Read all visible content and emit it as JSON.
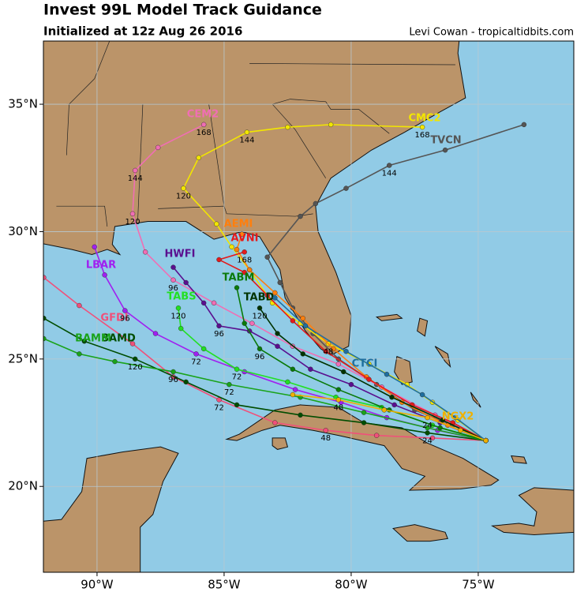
{
  "header": {
    "title": "Invest 99L Model Track Guidance",
    "subtitle": "Initialized at 12z Aug 26 2016",
    "credit": "Levi Cowan - tropicaltidbits.com"
  },
  "map": {
    "lon_range": [
      -92.11,
      -71.24
    ],
    "lat_range": [
      16.63,
      37.48
    ],
    "grid": true,
    "lat_ticks": [
      {
        "value": 20,
        "label": "20°N"
      },
      {
        "value": 25,
        "label": "25°N"
      },
      {
        "value": 30,
        "label": "30°N"
      },
      {
        "value": 35,
        "label": "35°N"
      }
    ],
    "lon_ticks": [
      {
        "value": -90,
        "label": "90°W"
      },
      {
        "value": -85,
        "label": "85°W"
      },
      {
        "value": -80,
        "label": "80°W"
      },
      {
        "value": -75,
        "label": "75°W"
      }
    ]
  },
  "tracks": [
    {
      "name": "TVCN",
      "color": "#555555",
      "points": [
        {
          "lon": -74.7,
          "lat": 21.8
        },
        {
          "lon": -76.0,
          "lat": 22.4
        },
        {
          "lon": -77.5,
          "lat": 23.0
        },
        {
          "lon": -79.0,
          "lat": 24.0
        },
        {
          "lon": -80.5,
          "lat": 25.0
        },
        {
          "lon": -81.5,
          "lat": 26.0
        },
        {
          "lon": -82.3,
          "lat": 27.0
        },
        {
          "lon": -82.8,
          "lat": 28.0
        },
        {
          "lon": -83.3,
          "lat": 29.0
        },
        {
          "lon": -82.0,
          "lat": 30.6
        },
        {
          "lon": -81.4,
          "lat": 31.1
        },
        {
          "lon": -80.2,
          "lat": 31.7
        },
        {
          "lon": -78.5,
          "lat": 32.6,
          "hour": 144
        },
        {
          "lon": -76.3,
          "lat": 33.2
        },
        {
          "lon": -73.2,
          "lat": 34.2
        }
      ]
    },
    {
      "name": "CMC2",
      "color": "#f2e600",
      "points": [
        {
          "lon": -74.7,
          "lat": 21.8
        },
        {
          "lon": -75.8,
          "lat": 22.6
        },
        {
          "lon": -76.8,
          "lat": 23.3
        },
        {
          "lon": -77.8,
          "lat": 24.0
        },
        {
          "lon": -79.3,
          "lat": 24.8
        },
        {
          "lon": -80.9,
          "lat": 25.6,
          "hour": 48
        },
        {
          "lon": -82.0,
          "lat": 26.4
        },
        {
          "lon": -83.1,
          "lat": 27.2
        },
        {
          "lon": -84.0,
          "lat": 28.5
        },
        {
          "lon": -84.7,
          "lat": 29.4
        },
        {
          "lon": -85.3,
          "lat": 30.3
        },
        {
          "lon": -86.6,
          "lat": 31.7,
          "hour": 120
        },
        {
          "lon": -86.0,
          "lat": 32.9
        },
        {
          "lon": -84.1,
          "lat": 33.9,
          "hour": 144
        },
        {
          "lon": -82.5,
          "lat": 34.1
        },
        {
          "lon": -80.8,
          "lat": 34.2
        },
        {
          "lon": -77.2,
          "lat": 34.1,
          "hour": 168
        }
      ]
    },
    {
      "name": "CEM2",
      "color": "#f06eb4",
      "points": [
        {
          "lon": -74.7,
          "lat": 21.8
        },
        {
          "lon": -76.7,
          "lat": 22.8
        },
        {
          "lon": -78.8,
          "lat": 23.9
        },
        {
          "lon": -80.5,
          "lat": 24.8
        },
        {
          "lon": -82.3,
          "lat": 25.5
        },
        {
          "lon": -83.9,
          "lat": 26.4
        },
        {
          "lon": -85.4,
          "lat": 27.2
        },
        {
          "lon": -87.0,
          "lat": 28.1,
          "hour": 96
        },
        {
          "lon": -88.1,
          "lat": 29.2
        },
        {
          "lon": -88.6,
          "lat": 30.7,
          "hour": 120
        },
        {
          "lon": -88.5,
          "lat": 32.4,
          "hour": 144
        },
        {
          "lon": -87.6,
          "lat": 33.3
        },
        {
          "lon": -85.8,
          "lat": 34.2,
          "hour": 168
        }
      ]
    },
    {
      "name": "AEMI",
      "color": "#ff7f0e",
      "points": [
        {
          "lon": -74.7,
          "lat": 21.8
        },
        {
          "lon": -76.2,
          "lat": 22.4
        },
        {
          "lon": -78.0,
          "lat": 23.3
        },
        {
          "lon": -79.4,
          "lat": 24.3
        },
        {
          "lon": -80.7,
          "lat": 25.4
        },
        {
          "lon": -81.9,
          "lat": 26.6
        },
        {
          "lon": -83.0,
          "lat": 27.6
        },
        {
          "lon": -84.0,
          "lat": 28.5
        },
        {
          "lon": -84.5,
          "lat": 29.3
        },
        {
          "lon": -84.3,
          "lat": 29.9
        }
      ]
    },
    {
      "name": "AVNI",
      "color": "#e41a1c",
      "points": [
        {
          "lon": -74.7,
          "lat": 21.8
        },
        {
          "lon": -76.0,
          "lat": 22.5
        },
        {
          "lon": -77.6,
          "lat": 23.2
        },
        {
          "lon": -79.3,
          "lat": 24.2
        },
        {
          "lon": -81.0,
          "lat": 25.3
        },
        {
          "lon": -82.3,
          "lat": 26.5
        },
        {
          "lon": -83.3,
          "lat": 27.5
        },
        {
          "lon": -84.2,
          "lat": 28.4
        },
        {
          "lon": -85.2,
          "lat": 28.9
        },
        {
          "lon": -84.2,
          "lat": 29.2,
          "hour": 168
        }
      ]
    },
    {
      "name": "HWFI",
      "color": "#5a0f8f",
      "points": [
        {
          "lon": -74.7,
          "lat": 21.8
        },
        {
          "lon": -76.5,
          "lat": 22.5
        },
        {
          "lon": -78.3,
          "lat": 23.2
        },
        {
          "lon": -80.0,
          "lat": 24.0
        },
        {
          "lon": -81.6,
          "lat": 24.6
        },
        {
          "lon": -82.9,
          "lat": 25.5
        },
        {
          "lon": -84.0,
          "lat": 26.1
        },
        {
          "lon": -85.2,
          "lat": 26.3,
          "hour": 96
        },
        {
          "lon": -85.8,
          "lat": 27.2
        },
        {
          "lon": -86.5,
          "lat": 28.0
        },
        {
          "lon": -87.0,
          "lat": 28.6
        }
      ]
    },
    {
      "name": "LBAR",
      "color": "#a020f0",
      "points": [
        {
          "lon": -74.7,
          "lat": 21.8
        },
        {
          "lon": -76.6,
          "lat": 22.2
        },
        {
          "lon": -78.6,
          "lat": 22.7
        },
        {
          "lon": -80.4,
          "lat": 23.3
        },
        {
          "lon": -82.2,
          "lat": 23.8
        },
        {
          "lon": -84.2,
          "lat": 24.5
        },
        {
          "lon": -86.1,
          "lat": 25.2,
          "hour": 72
        },
        {
          "lon": -87.7,
          "lat": 26.0
        },
        {
          "lon": -88.9,
          "lat": 26.9,
          "hour": 96
        },
        {
          "lon": -89.7,
          "lat": 28.3
        },
        {
          "lon": -90.1,
          "lat": 29.4
        }
      ]
    },
    {
      "name": "GFDI",
      "color": "#f0507a",
      "points": [
        {
          "lon": -74.7,
          "lat": 21.8
        },
        {
          "lon": -76.8,
          "lat": 21.9
        },
        {
          "lon": -79.0,
          "lat": 22.0
        },
        {
          "lon": -81.0,
          "lat": 22.2,
          "hour": 48
        },
        {
          "lon": -83.0,
          "lat": 22.5
        },
        {
          "lon": -85.2,
          "lat": 23.4,
          "hour": 72
        },
        {
          "lon": -87.0,
          "lat": 24.3
        },
        {
          "lon": -88.6,
          "lat": 25.6
        },
        {
          "lon": -90.7,
          "lat": 27.1
        },
        {
          "lon": -92.1,
          "lat": 28.2
        }
      ]
    },
    {
      "name": "BAMD",
      "color": "#004d00",
      "points": [
        {
          "lon": -74.7,
          "lat": 21.8
        },
        {
          "lon": -77.0,
          "lat": 22.1,
          "hour": 24
        },
        {
          "lon": -79.5,
          "lat": 22.5
        },
        {
          "lon": -82.0,
          "lat": 22.8
        },
        {
          "lon": -84.5,
          "lat": 23.2
        },
        {
          "lon": -86.5,
          "lat": 24.1
        },
        {
          "lon": -88.5,
          "lat": 25.0,
          "hour": 120
        },
        {
          "lon": -90.5,
          "lat": 25.7
        },
        {
          "lon": -92.1,
          "lat": 26.6
        }
      ]
    },
    {
      "name": "BAMM",
      "color": "#1aa31a",
      "points": [
        {
          "lon": -74.7,
          "lat": 21.8
        },
        {
          "lon": -77.0,
          "lat": 22.3
        },
        {
          "lon": -79.5,
          "lat": 22.9
        },
        {
          "lon": -82.0,
          "lat": 23.5
        },
        {
          "lon": -84.8,
          "lat": 24.0,
          "hour": 72
        },
        {
          "lon": -87.0,
          "lat": 24.5,
          "hour": 96
        },
        {
          "lon": -89.3,
          "lat": 24.9
        },
        {
          "lon": -90.7,
          "lat": 25.2
        },
        {
          "lon": -92.1,
          "lat": 25.8
        }
      ]
    },
    {
      "name": "TABS",
      "color": "#22e022",
      "points": [
        {
          "lon": -74.7,
          "lat": 21.8
        },
        {
          "lon": -76.8,
          "lat": 22.4
        },
        {
          "lon": -78.8,
          "lat": 23.1
        },
        {
          "lon": -80.6,
          "lat": 23.5
        },
        {
          "lon": -82.5,
          "lat": 24.1
        },
        {
          "lon": -84.5,
          "lat": 24.6,
          "hour": 72
        },
        {
          "lon": -85.8,
          "lat": 25.4
        },
        {
          "lon": -86.7,
          "lat": 26.2
        },
        {
          "lon": -86.8,
          "lat": 27.0,
          "hour": 120
        }
      ]
    },
    {
      "name": "TABM",
      "color": "#0a7a0a",
      "points": [
        {
          "lon": -74.7,
          "lat": 21.8
        },
        {
          "lon": -76.5,
          "lat": 22.3
        },
        {
          "lon": -78.5,
          "lat": 23.0
        },
        {
          "lon": -80.5,
          "lat": 23.8
        },
        {
          "lon": -82.3,
          "lat": 24.6
        },
        {
          "lon": -83.6,
          "lat": 25.4,
          "hour": 96
        },
        {
          "lon": -84.2,
          "lat": 26.4
        },
        {
          "lon": -84.5,
          "lat": 27.8
        }
      ]
    },
    {
      "name": "TABD",
      "color": "#003300",
      "points": [
        {
          "lon": -74.7,
          "lat": 21.8
        },
        {
          "lon": -76.4,
          "lat": 22.6
        },
        {
          "lon": -78.4,
          "lat": 23.5
        },
        {
          "lon": -80.3,
          "lat": 24.5
        },
        {
          "lon": -81.9,
          "lat": 25.2
        },
        {
          "lon": -82.9,
          "lat": 26.0
        },
        {
          "lon": -83.6,
          "lat": 27.0,
          "hour": 120
        }
      ]
    },
    {
      "name": "CTCI",
      "color": "#1f6f9f",
      "points": [
        {
          "lon": -74.7,
          "lat": 21.8
        },
        {
          "lon": -75.9,
          "lat": 22.7
        },
        {
          "lon": -77.2,
          "lat": 23.6
        },
        {
          "lon": -78.6,
          "lat": 24.4
        },
        {
          "lon": -80.2,
          "lat": 25.3
        },
        {
          "lon": -81.8,
          "lat": 26.3
        },
        {
          "lon": -83.0,
          "lat": 27.4
        }
      ]
    },
    {
      "name": "NGX2",
      "color": "#f0b000",
      "points": [
        {
          "lon": -74.7,
          "lat": 21.8
        },
        {
          "lon": -75.7,
          "lat": 22.2
        },
        {
          "lon": -77.0,
          "lat": 22.7,
          "hour": 24
        },
        {
          "lon": -78.7,
          "lat": 23.0
        },
        {
          "lon": -80.5,
          "lat": 23.4,
          "hour": 48
        },
        {
          "lon": -82.3,
          "lat": 23.6
        }
      ]
    }
  ]
}
